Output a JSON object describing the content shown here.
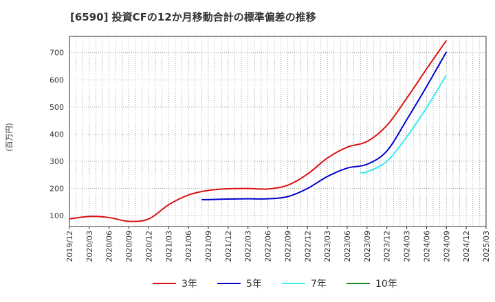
{
  "chart_data": {
    "type": "line",
    "title": "[6590]  投資CFの12か月移動合計の標準偏差の推移",
    "ylabel": "(百万円)",
    "xlabel": "",
    "ylim": [
      60,
      760
    ],
    "yticks": [
      100,
      200,
      300,
      400,
      500,
      600,
      700
    ],
    "x_tick_labels": [
      "2019/12",
      "2020/03",
      "2020/06",
      "2020/09",
      "2020/12",
      "2021/03",
      "2021/06",
      "2021/09",
      "2021/12",
      "2022/03",
      "2022/06",
      "2022/09",
      "2022/12",
      "2023/03",
      "2023/06",
      "2023/09",
      "2023/12",
      "2024/03",
      "2024/06",
      "2024/09",
      "2024/12",
      "2025/03"
    ],
    "grid": true,
    "legend_position": "bottom",
    "series": [
      {
        "name": "3年",
        "color": "#dd1111",
        "points": [
          [
            "2019/12",
            88
          ],
          [
            "2020/03",
            97
          ],
          [
            "2020/06",
            93
          ],
          [
            "2020/09",
            79
          ],
          [
            "2020/12",
            88
          ],
          [
            "2021/03",
            140
          ],
          [
            "2021/06",
            176
          ],
          [
            "2021/09",
            193
          ],
          [
            "2021/12",
            199
          ],
          [
            "2022/03",
            200
          ],
          [
            "2022/06",
            198
          ],
          [
            "2022/09",
            212
          ],
          [
            "2022/12",
            253
          ],
          [
            "2023/03",
            312
          ],
          [
            "2023/06",
            352
          ],
          [
            "2023/09",
            373
          ],
          [
            "2023/12",
            432
          ],
          [
            "2024/03",
            532
          ],
          [
            "2024/06",
            640
          ],
          [
            "2024/09",
            745
          ]
        ]
      },
      {
        "name": "5年",
        "color": "#0000cc",
        "points": [
          [
            "2021/08",
            159
          ],
          [
            "2021/09",
            159
          ],
          [
            "2021/12",
            161
          ],
          [
            "2022/03",
            162
          ],
          [
            "2022/06",
            162
          ],
          [
            "2022/09",
            170
          ],
          [
            "2022/12",
            200
          ],
          [
            "2023/03",
            244
          ],
          [
            "2023/06",
            275
          ],
          [
            "2023/09",
            289
          ],
          [
            "2023/12",
            338
          ],
          [
            "2024/03",
            453
          ],
          [
            "2024/06",
            575
          ],
          [
            "2024/09",
            703
          ]
        ]
      },
      {
        "name": "7年",
        "color": "#33eeee",
        "points": [
          [
            "2023/08",
            258
          ],
          [
            "2023/09",
            261
          ],
          [
            "2023/12",
            300
          ],
          [
            "2024/03",
            390
          ],
          [
            "2024/06",
            497
          ],
          [
            "2024/09",
            618
          ]
        ]
      },
      {
        "name": "10年",
        "color": "#228822",
        "points": []
      }
    ]
  }
}
